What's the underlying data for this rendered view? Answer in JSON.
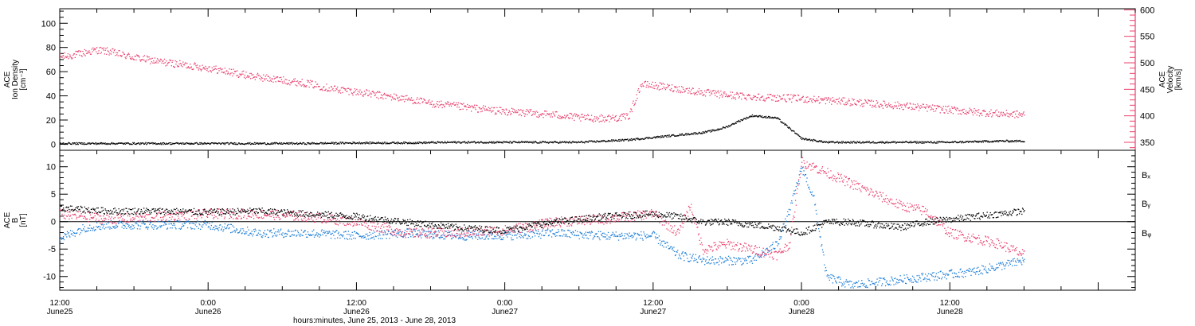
{
  "chart_data": [
    {
      "type": "scatter",
      "panel": "ion-density-velocity",
      "ylabel": [
        "ACE",
        "Ion Density",
        "[cm⁻³]"
      ],
      "y2label": [
        "ACE",
        "Velocity",
        "[km/s]"
      ],
      "ylim": [
        -5,
        112
      ],
      "y2lim": [
        335,
        602
      ],
      "yticks": [
        0,
        20,
        40,
        60,
        80,
        100
      ],
      "y2ticks": [
        350,
        400,
        450,
        500,
        550,
        600
      ],
      "colors": {
        "density": "#000000",
        "velocity": "#e8406e"
      },
      "series": [
        {
          "axis": "left",
          "color": "#000000",
          "x": [
            12,
            16,
            20,
            24,
            28,
            32,
            36,
            40,
            44,
            48,
            50,
            52,
            54,
            56,
            58,
            60,
            61,
            62,
            63,
            64,
            65,
            66,
            67,
            68,
            70,
            72,
            74,
            76,
            78,
            80,
            84,
            88,
            90
          ],
          "values": [
            1,
            1,
            1,
            1,
            1,
            1,
            1.5,
            1.5,
            2,
            2,
            2,
            2,
            2,
            3,
            4,
            6,
            7,
            8,
            9,
            10,
            12,
            15,
            20,
            24,
            22,
            5,
            2,
            2,
            2,
            2,
            2,
            3,
            3
          ]
        },
        {
          "axis": "right",
          "color": "#e8406e",
          "x": [
            12,
            13,
            14,
            15,
            16,
            17,
            18,
            20,
            22,
            24,
            26,
            28,
            30,
            32,
            34,
            36,
            38,
            40,
            42,
            44,
            46,
            48,
            50,
            52,
            54,
            56,
            57.5,
            58,
            59,
            60,
            61,
            62,
            63,
            64,
            65,
            66,
            67,
            68,
            69,
            70,
            72,
            74,
            76,
            78,
            80,
            82,
            84,
            86,
            88,
            90
          ],
          "values": [
            512,
            515,
            520,
            525,
            522,
            516,
            511,
            503,
            497,
            491,
            482,
            474,
            468,
            462,
            452,
            446,
            439,
            433,
            424,
            419,
            414,
            409,
            406,
            403,
            397,
            396,
            398,
            400,
            460,
            458,
            455,
            452,
            448,
            445,
            442,
            440,
            438,
            437,
            436,
            435,
            433,
            430,
            427,
            423,
            420,
            416,
            412,
            408,
            405,
            403
          ]
        }
      ]
    },
    {
      "type": "scatter",
      "panel": "magnetic-field",
      "ylabel": [
        "ACE",
        "B",
        "[nT]"
      ],
      "ylim": [
        -12.5,
        13
      ],
      "yticks": [
        -10,
        -5,
        0,
        5,
        10
      ],
      "legend": [
        "Bₓ",
        "Bᵧ",
        "Bᵩ"
      ],
      "series": [
        {
          "name": "Bx",
          "color": "#000000",
          "x": [
            12,
            16,
            20,
            24,
            28,
            32,
            36,
            40,
            44,
            48,
            52,
            56,
            60,
            62,
            64,
            66,
            68,
            70,
            72,
            74,
            76,
            78,
            80,
            82,
            84,
            86,
            88,
            90
          ],
          "values": [
            2.5,
            2,
            2,
            1.8,
            2,
            1.5,
            1,
            0,
            -1,
            -1.5,
            0,
            1,
            1.5,
            1,
            0,
            0,
            -0.5,
            -1,
            -2,
            0,
            0,
            -0.5,
            -1,
            0,
            0.5,
            1,
            1.5,
            2
          ]
        },
        {
          "name": "By",
          "color": "#1a7cd6",
          "x": [
            12,
            14,
            16,
            20,
            24,
            28,
            32,
            36,
            40,
            44,
            48,
            52,
            56,
            60,
            62,
            64,
            66,
            68,
            70,
            71,
            72,
            73,
            74,
            76,
            78,
            80,
            82,
            84,
            86,
            88,
            89,
            90
          ],
          "values": [
            -3,
            -1,
            -0.5,
            -0.5,
            -0.5,
            -2,
            -2,
            -2.5,
            -2,
            -2.5,
            -2.5,
            -2,
            -2.5,
            -2.5,
            -6,
            -7,
            -7,
            -7,
            -4,
            2,
            10,
            4,
            -10,
            -11.5,
            -11,
            -10.5,
            -10,
            -9.5,
            -9,
            -8,
            -7.5,
            -7
          ]
        },
        {
          "name": "Bz",
          "color": "#e8406e",
          "x": [
            12,
            14,
            16,
            20,
            24,
            28,
            32,
            36,
            40,
            44,
            48,
            52,
            56,
            58,
            60,
            62,
            63,
            64,
            66,
            68,
            70,
            71,
            72,
            73,
            74,
            76,
            78,
            80,
            82,
            84,
            86,
            88,
            89,
            90
          ],
          "values": [
            1.5,
            1,
            0.5,
            1,
            1.5,
            1.5,
            1,
            0,
            -2,
            -2,
            -1.5,
            0,
            0.5,
            1,
            1.5,
            -2,
            3,
            -5,
            -4,
            -5,
            -6,
            -4,
            11,
            10,
            9,
            7,
            5,
            3,
            2,
            -2,
            -3,
            -4,
            -5,
            -6
          ]
        }
      ]
    }
  ],
  "xaxis": {
    "xlim": [
      12,
      99
    ],
    "ticks": [
      {
        "x": 12,
        "time": "12:00",
        "date": "June25"
      },
      {
        "x": 24,
        "time": "0:00",
        "date": "June26"
      },
      {
        "x": 36,
        "time": "12:00",
        "date": "June26"
      },
      {
        "x": 48,
        "time": "0:00",
        "date": "June27"
      },
      {
        "x": 60,
        "time": "12:00",
        "date": "June27"
      },
      {
        "x": 72,
        "time": "0:00",
        "date": "June28"
      },
      {
        "x": 84,
        "time": "12:00",
        "date": "June28"
      }
    ],
    "title": "hours:minutes, June 25, 2013 - June 28, 2013"
  }
}
